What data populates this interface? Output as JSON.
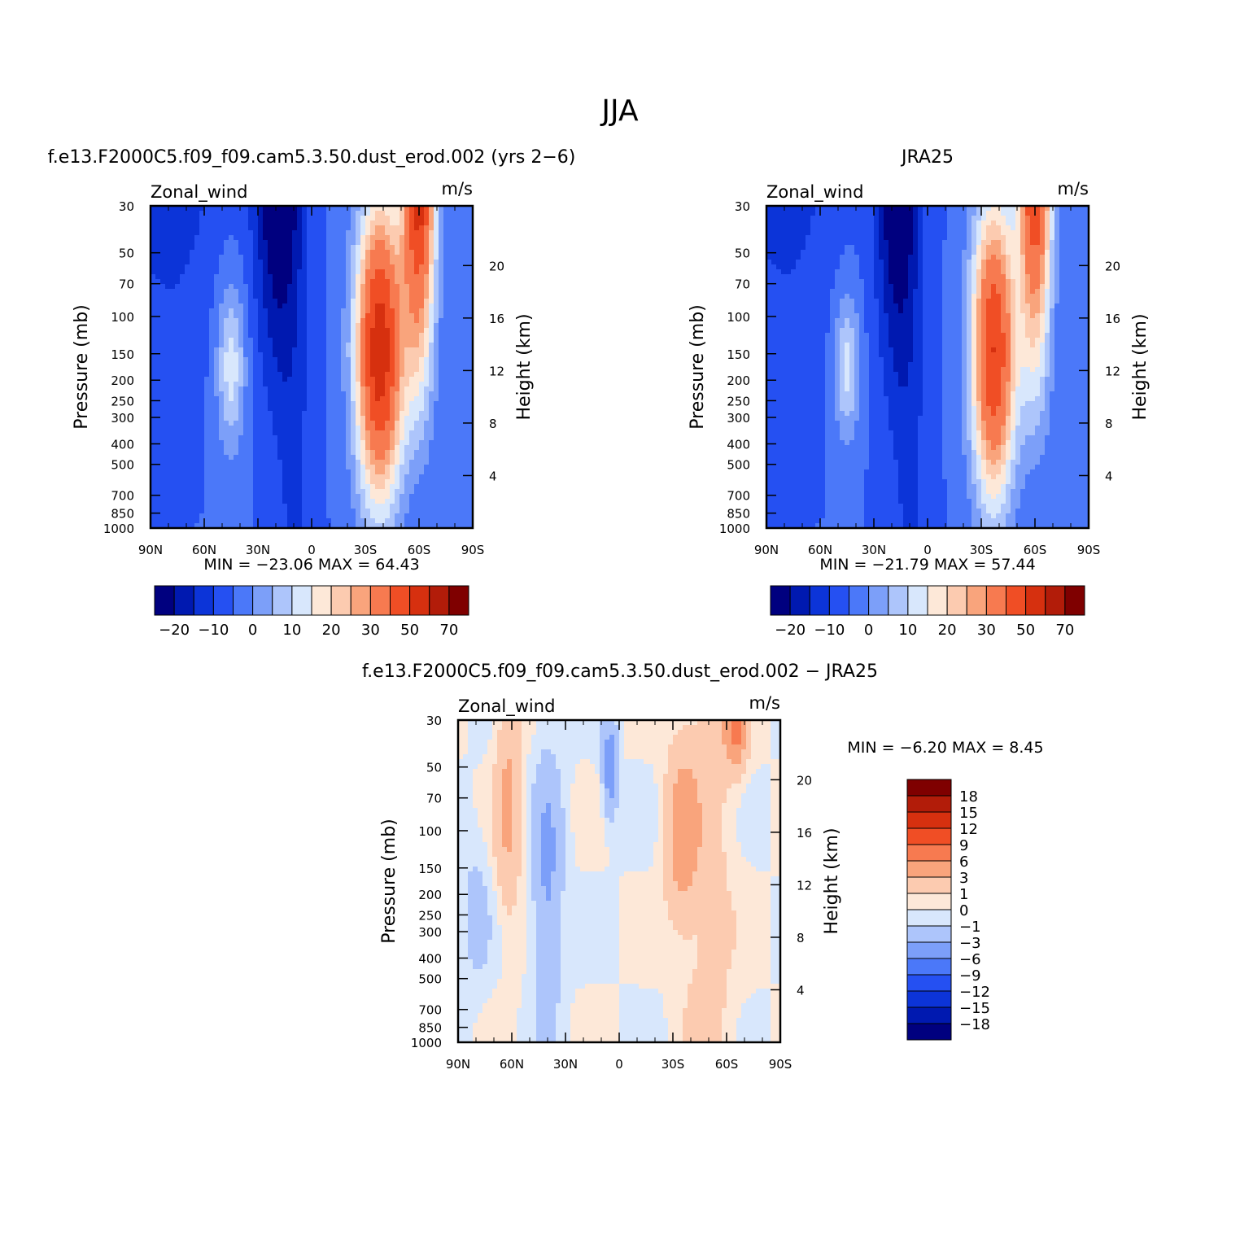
{
  "figure": {
    "title": "JJA"
  },
  "colors": {
    "palette_12": [
      "#00007f",
      "#0019b0",
      "#0c34d8",
      "#2550f2",
      "#4b78f9",
      "#7c9ff9",
      "#adc5fb",
      "#d8e7fc",
      "#fde8d8",
      "#fccbb0",
      "#f9a47c",
      "#f77a50",
      "#f04e25",
      "#d6300f",
      "#b21c09",
      "#7f0000"
    ],
    "diff_palette": [
      "#00007f",
      "#0019b0",
      "#0c34d8",
      "#2550f2",
      "#4b78f9",
      "#7c9ff9",
      "#adc5fb",
      "#d8e7fc",
      "#fde8d8",
      "#fccbb0",
      "#f9a47c",
      "#f77a50",
      "#f04e25",
      "#d6300f",
      "#b21c09",
      "#7f0000"
    ]
  },
  "chart_data": [
    {
      "type": "heatmap",
      "panel": "model",
      "title": "f.e13.F2000C5.f09_f09.cam5.3.50.dust_erod.002 (yrs 2−6)",
      "left_label": "Zonal_wind",
      "right_label": "m/s",
      "ylabel": "Pressure  (mb)",
      "ylabel_right": "Height  (km)",
      "x_ticks": [
        "90N",
        "60N",
        "30N",
        "0",
        "30S",
        "60S",
        "90S"
      ],
      "y_ticks": [
        "30",
        "50",
        "70",
        "100",
        "150",
        "200",
        "250",
        "300",
        "400",
        "500",
        "700",
        "850",
        "1000"
      ],
      "y_ticks_right": [
        "20",
        "16",
        "12",
        "8",
        "4"
      ],
      "min_label": "MIN =",
      "min_value": "−23.06",
      "max_label": "MAX =",
      "max_value": "64.43",
      "min": -23.06,
      "max": 64.43,
      "colorbar_labels": [
        "−20",
        "−10",
        "0",
        "10",
        "20",
        "30",
        "50",
        "70"
      ],
      "colorbar_levels": [
        -25,
        -20,
        -15,
        -10,
        -5,
        0,
        5,
        10,
        15,
        20,
        25,
        30,
        40,
        50,
        60,
        70,
        80
      ]
    },
    {
      "type": "heatmap",
      "panel": "obs",
      "title": "JRA25",
      "left_label": "Zonal_wind",
      "right_label": "m/s",
      "ylabel": "Pressure  (mb)",
      "ylabel_right": "Height  (km)",
      "x_ticks": [
        "90N",
        "60N",
        "30N",
        "0",
        "30S",
        "60S",
        "90S"
      ],
      "y_ticks": [
        "30",
        "50",
        "70",
        "100",
        "150",
        "200",
        "250",
        "300",
        "400",
        "500",
        "700",
        "850",
        "1000"
      ],
      "y_ticks_right": [
        "20",
        "16",
        "12",
        "8",
        "4"
      ],
      "min_label": "MIN =",
      "min_value": "−21.79",
      "max_label": "MAX =",
      "max_value": "57.44",
      "min": -21.79,
      "max": 57.44,
      "colorbar_labels": [
        "−20",
        "−10",
        "0",
        "10",
        "20",
        "30",
        "50",
        "70"
      ],
      "colorbar_levels": [
        -25,
        -20,
        -15,
        -10,
        -5,
        0,
        5,
        10,
        15,
        20,
        25,
        30,
        40,
        50,
        60,
        70,
        80
      ]
    },
    {
      "type": "heatmap",
      "panel": "difference",
      "title": "f.e13.F2000C5.f09_f09.cam5.3.50.dust_erod.002 − JRA25",
      "left_label": "Zonal_wind",
      "right_label": "m/s",
      "ylabel": "Pressure  (mb)",
      "ylabel_right": "Height  (km)",
      "x_ticks": [
        "90N",
        "60N",
        "30N",
        "0",
        "30S",
        "60S",
        "90S"
      ],
      "y_ticks": [
        "30",
        "50",
        "70",
        "100",
        "150",
        "200",
        "250",
        "300",
        "400",
        "500",
        "700",
        "850",
        "1000"
      ],
      "y_ticks_right": [
        "20",
        "16",
        "12",
        "8",
        "4"
      ],
      "min_label": "MIN =",
      "min_value": "−6.20",
      "max_label": "MAX =",
      "max_value": "8.45",
      "min": -6.2,
      "max": 8.45,
      "colorbar_labels": [
        "18",
        "15",
        "12",
        "9",
        "6",
        "3",
        "1",
        "0",
        "−1",
        "−3",
        "−6",
        "−9",
        "−12",
        "−15",
        "−18"
      ],
      "colorbar_levels": [
        -21,
        -18,
        -15,
        -12,
        -9,
        -6,
        -3,
        -1,
        0,
        1,
        3,
        6,
        9,
        12,
        15,
        18,
        21
      ]
    }
  ]
}
